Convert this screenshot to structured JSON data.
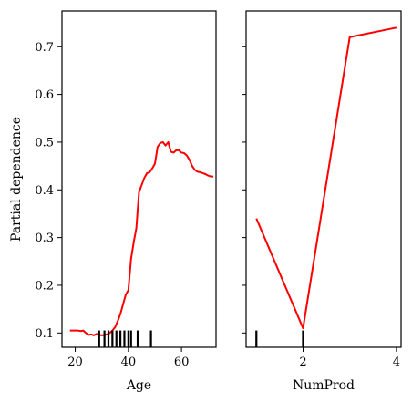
{
  "chart_data": [
    {
      "type": "line",
      "title": "",
      "xlabel": "Age",
      "ylabel": "Partial dependence",
      "xlim": [
        15,
        73
      ],
      "ylim": [
        0.07,
        0.775
      ],
      "xticks": [
        20,
        40,
        60
      ],
      "yticks": [
        0.1,
        0.2,
        0.3,
        0.4,
        0.5,
        0.6,
        0.7
      ],
      "ytick_labels": [
        "0.1",
        "0.2",
        "0.3",
        "0.4",
        "0.5",
        "0.6",
        "0.7"
      ],
      "line_color": "#ff0000",
      "series": [
        {
          "x": [
            18,
            19.5,
            21,
            22,
            23,
            24,
            25,
            26,
            27,
            28,
            29,
            30,
            31,
            32,
            33,
            34,
            35,
            36,
            37,
            38,
            38.5,
            39,
            40,
            41,
            42,
            43,
            44,
            45,
            46,
            47,
            48,
            49,
            50,
            51,
            52,
            53,
            54,
            55,
            56,
            57,
            58,
            59,
            60,
            61,
            62,
            63,
            64,
            65,
            66,
            67,
            68,
            69,
            70,
            71,
            72
          ],
          "y": [
            0.105,
            0.105,
            0.105,
            0.104,
            0.105,
            0.1,
            0.096,
            0.097,
            0.095,
            0.098,
            0.096,
            0.095,
            0.096,
            0.097,
            0.1,
            0.105,
            0.112,
            0.125,
            0.14,
            0.16,
            0.17,
            0.18,
            0.19,
            0.255,
            0.29,
            0.32,
            0.395,
            0.41,
            0.425,
            0.435,
            0.437,
            0.445,
            0.455,
            0.49,
            0.498,
            0.5,
            0.493,
            0.5,
            0.48,
            0.478,
            0.483,
            0.483,
            0.478,
            0.477,
            0.472,
            0.463,
            0.45,
            0.442,
            0.438,
            0.437,
            0.435,
            0.433,
            0.43,
            0.428,
            0.428
          ]
        }
      ],
      "deciles": [
        29,
        31,
        32.5,
        34,
        35.5,
        37,
        38.5,
        40,
        41,
        43.5,
        48.5
      ]
    },
    {
      "type": "line",
      "title": "",
      "xlabel": "NumProd",
      "ylabel": "",
      "xlim": [
        0.78,
        4.1
      ],
      "ylim": [
        0.07,
        0.775
      ],
      "xticks": [
        2,
        4
      ],
      "yticks": [
        0.1,
        0.2,
        0.3,
        0.4,
        0.5,
        0.6,
        0.7
      ],
      "line_color": "#ff0000",
      "series": [
        {
          "x": [
            1,
            2,
            3,
            4
          ],
          "y": [
            0.34,
            0.11,
            0.72,
            0.74
          ]
        }
      ],
      "deciles": [
        1,
        2
      ]
    }
  ]
}
